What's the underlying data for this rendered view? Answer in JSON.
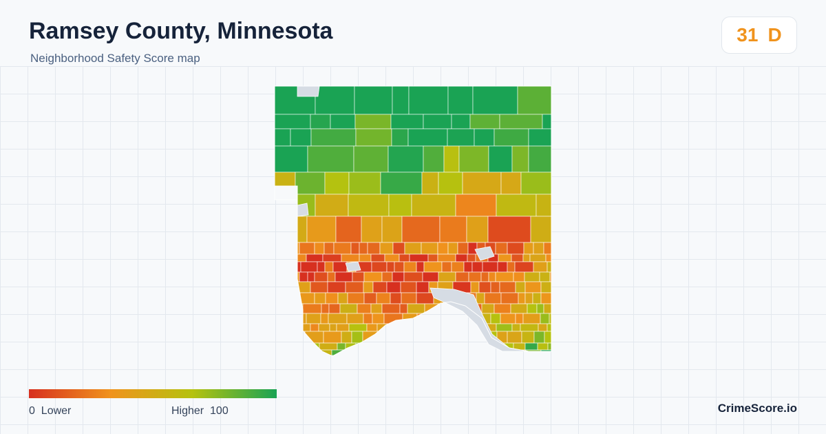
{
  "header": {
    "title": "Ramsey County, Minnesota",
    "subtitle": "Neighborhood Safety Score map"
  },
  "score": {
    "value": "31",
    "grade": "D",
    "color": "#f0931d"
  },
  "legend": {
    "min_value": "0",
    "min_label": "Lower",
    "max_label": "Higher",
    "max_value": "100",
    "colors": [
      "#d7301f",
      "#f0931d",
      "#b5c20f",
      "#1aa354"
    ]
  },
  "brand": "CrimeScore.io",
  "map": {
    "water_color": "#d6dce4",
    "background": "#f7f9fb"
  }
}
